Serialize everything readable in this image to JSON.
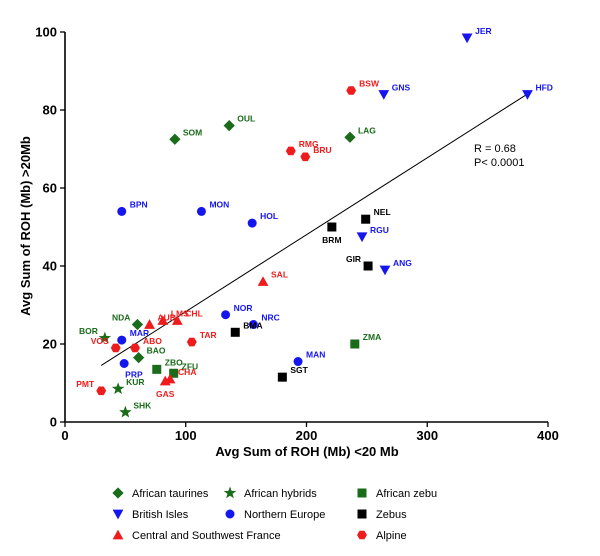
{
  "colors": {
    "green": "#1a6b1a",
    "blue": "#1515ee",
    "black": "#000000",
    "red": "#ee1c1c"
  },
  "chart_data": {
    "type": "scatter",
    "xlabel": "Avg Sum of ROH (Mb) <20 Mb",
    "ylabel": "Avg Sum of ROH (Mb) >20Mb",
    "xlim": [
      0,
      400
    ],
    "ylim": [
      0,
      100
    ],
    "xticks": [
      "0",
      "100",
      "200",
      "300",
      "400"
    ],
    "yticks": [
      "0",
      "20",
      "40",
      "60",
      "80",
      "100"
    ],
    "annotation": {
      "r_text": "R = 0.68",
      "p_text": "P< 0.0001"
    },
    "trendline": {
      "x": [
        30,
        385
      ],
      "y": [
        14.5,
        84.5
      ]
    },
    "groups": [
      {
        "name": "African taurines",
        "marker": "diamond",
        "color": "#1a6b1a"
      },
      {
        "name": "African hybrids",
        "marker": "star",
        "color": "#1a6b1a"
      },
      {
        "name": "African zebu",
        "marker": "square",
        "color": "#1a6b1a"
      },
      {
        "name": "British Isles",
        "marker": "triangle-down",
        "color": "#1515ee"
      },
      {
        "name": "Northern Europe",
        "marker": "circle",
        "color": "#1515ee"
      },
      {
        "name": "Zebus",
        "marker": "square",
        "color": "#000000"
      },
      {
        "name": "Central and Southwest France",
        "marker": "triangle-up",
        "color": "#ee1c1c"
      },
      {
        "name": "Alpine",
        "marker": "hexagon",
        "color": "#ee1c1c"
      }
    ],
    "points": [
      {
        "label": "SOM",
        "group": 0,
        "x": 91,
        "y": 72.5,
        "anchor": "r"
      },
      {
        "label": "OUL",
        "group": 0,
        "x": 136,
        "y": 76,
        "anchor": "r"
      },
      {
        "label": "LAG",
        "group": 0,
        "x": 236,
        "y": 73,
        "anchor": "r"
      },
      {
        "label": "NDA",
        "group": 0,
        "x": 60,
        "y": 25,
        "anchor": "l"
      },
      {
        "label": "BAO",
        "group": 0,
        "x": 61,
        "y": 16.5,
        "anchor": "r"
      },
      {
        "label": "BOR",
        "group": 1,
        "x": 33,
        "y": 21.5,
        "anchor": "l"
      },
      {
        "label": "KUR",
        "group": 1,
        "x": 44,
        "y": 8.5,
        "anchor": "r"
      },
      {
        "label": "SHK",
        "group": 1,
        "x": 50,
        "y": 2.5,
        "anchor": "r"
      },
      {
        "label": "ZBO",
        "group": 2,
        "x": 76,
        "y": 13.5,
        "anchor": "r"
      },
      {
        "label": "ZFU",
        "group": 2,
        "x": 90,
        "y": 12.5,
        "anchor": "r"
      },
      {
        "label": "ZMA",
        "group": 2,
        "x": 240,
        "y": 20,
        "anchor": "r"
      },
      {
        "label": "JER",
        "group": 3,
        "x": 333,
        "y": 98.5,
        "anchor": "r"
      },
      {
        "label": "HFD",
        "group": 3,
        "x": 383,
        "y": 84,
        "anchor": "r"
      },
      {
        "label": "GNS",
        "group": 3,
        "x": 264,
        "y": 84,
        "anchor": "r"
      },
      {
        "label": "RGU",
        "group": 3,
        "x": 246,
        "y": 47.5,
        "anchor": "r"
      },
      {
        "label": "ANG",
        "group": 3,
        "x": 265,
        "y": 39,
        "anchor": "r"
      },
      {
        "label": "BPN",
        "group": 4,
        "x": 47,
        "y": 54,
        "anchor": "r"
      },
      {
        "label": "MON",
        "group": 4,
        "x": 113,
        "y": 54,
        "anchor": "r"
      },
      {
        "label": "HOL",
        "group": 4,
        "x": 155,
        "y": 51,
        "anchor": "r"
      },
      {
        "label": "NOR",
        "group": 4,
        "x": 133,
        "y": 27.5,
        "anchor": "r"
      },
      {
        "label": "NRC",
        "group": 4,
        "x": 156,
        "y": 25,
        "anchor": "r"
      },
      {
        "label": "MAR",
        "group": 4,
        "x": 47,
        "y": 21,
        "anchor": "r"
      },
      {
        "label": "PRP",
        "group": 4,
        "x": 49,
        "y": 15,
        "anchor": "br"
      },
      {
        "label": "MAN",
        "group": 4,
        "x": 193,
        "y": 15.5,
        "anchor": "r"
      },
      {
        "label": "NEL",
        "group": 5,
        "x": 249,
        "y": 52,
        "anchor": "r"
      },
      {
        "label": "BRM",
        "group": 5,
        "x": 221,
        "y": 50,
        "anchor": "b"
      },
      {
        "label": "GIR",
        "group": 5,
        "x": 251,
        "y": 40,
        "anchor": "l"
      },
      {
        "label": "BMA",
        "group": 5,
        "x": 141,
        "y": 23,
        "anchor": "r"
      },
      {
        "label": "SGT",
        "group": 5,
        "x": 180,
        "y": 11.5,
        "anchor": "r"
      },
      {
        "label": "AUB",
        "group": 6,
        "x": 70,
        "y": 25,
        "anchor": "r"
      },
      {
        "label": "LMS",
        "group": 6,
        "x": 81,
        "y": 26,
        "anchor": "r"
      },
      {
        "label": "CHL",
        "group": 6,
        "x": 93,
        "y": 26,
        "anchor": "r"
      },
      {
        "label": "SAL",
        "group": 6,
        "x": 164,
        "y": 36,
        "anchor": "r"
      },
      {
        "label": "GAS",
        "group": 6,
        "x": 83,
        "y": 10.5,
        "anchor": "b"
      },
      {
        "label": "CHA",
        "group": 6,
        "x": 87,
        "y": 11,
        "anchor": "r"
      },
      {
        "label": "BSW",
        "group": 7,
        "x": 237,
        "y": 85,
        "anchor": "r"
      },
      {
        "label": "RMG",
        "group": 7,
        "x": 187,
        "y": 69.5,
        "anchor": "r"
      },
      {
        "label": "BRU",
        "group": 7,
        "x": 199,
        "y": 68,
        "anchor": "r"
      },
      {
        "label": "TAR",
        "group": 7,
        "x": 105,
        "y": 20.5,
        "anchor": "r"
      },
      {
        "label": "VOS",
        "group": 7,
        "x": 42,
        "y": 19,
        "anchor": "l"
      },
      {
        "label": "ABO",
        "group": 7,
        "x": 58,
        "y": 19,
        "anchor": "r"
      },
      {
        "label": "PMT",
        "group": 7,
        "x": 30,
        "y": 8,
        "anchor": "l"
      }
    ],
    "legend": [
      {
        "group": 0,
        "label": "African taurines"
      },
      {
        "group": 1,
        "label": "African hybrids"
      },
      {
        "group": 2,
        "label": "African zebu"
      },
      {
        "group": 3,
        "label": "British Isles"
      },
      {
        "group": 4,
        "label": "Northern Europe"
      },
      {
        "group": 5,
        "label": "Zebus"
      },
      {
        "group": 6,
        "label": "Central and Southwest France"
      },
      {
        "group": 7,
        "label": "Alpine"
      }
    ]
  }
}
